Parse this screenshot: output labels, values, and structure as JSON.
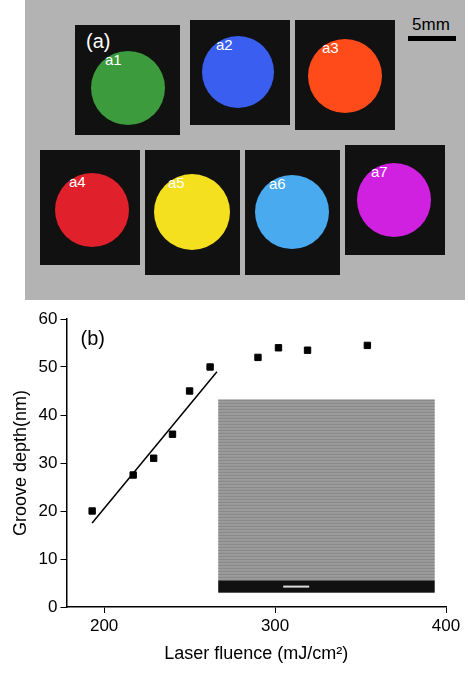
{
  "photo": {
    "label": "(a)",
    "scale_bar": "5mm",
    "samples": [
      {
        "label": "a1",
        "color": "#3c9b3c"
      },
      {
        "label": "a2",
        "color": "#3a5ff0"
      },
      {
        "label": "a3",
        "color": "#ff4a1a"
      },
      {
        "label": "a4",
        "color": "#e0202a"
      },
      {
        "label": "a5",
        "color": "#f5e020"
      },
      {
        "label": "a6",
        "color": "#4aaaf0"
      },
      {
        "label": "a7",
        "color": "#d020e0"
      }
    ]
  },
  "chart_data": {
    "type": "scatter",
    "annotation": "(b)",
    "x_label": "Laser fluence (mJ/cm²)",
    "y_label": "Groove depth(nm)",
    "xlim": [
      178,
      400
    ],
    "xticks": [
      200,
      300,
      400
    ],
    "ylim": [
      0,
      60
    ],
    "yticks": [
      0,
      10,
      20,
      30,
      40,
      50,
      60
    ],
    "grid": false,
    "series": [
      {
        "type": "scatter",
        "marker": "square",
        "color": "#000000",
        "x": [
          193,
          217,
          229,
          240,
          250,
          262,
          290,
          302,
          319,
          354
        ],
        "values": [
          20,
          27.5,
          31,
          36,
          45,
          50,
          52,
          54,
          53.5,
          54.5
        ]
      },
      {
        "type": "line",
        "line_style": "solid",
        "color": "#000000",
        "x": [
          193,
          266
        ],
        "values": [
          17.5,
          49
        ]
      }
    ]
  }
}
